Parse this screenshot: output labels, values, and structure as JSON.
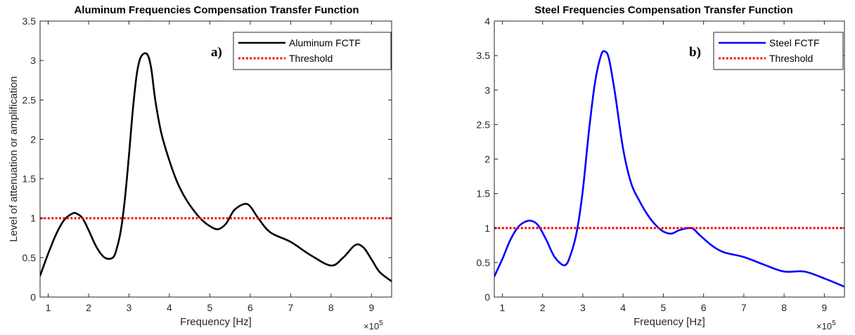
{
  "chart_data": [
    {
      "type": "line",
      "title": "Aluminum Frequencies Compensation Transfer Function",
      "xlabel": "Frequency [Hz]",
      "ylabel": "Level of attenuation or amplification",
      "x_exponent_label": "×10",
      "x_exponent_power": "5",
      "panel_label": "a)",
      "xlim": [
        0.8,
        9.5
      ],
      "ylim": [
        0,
        3.5
      ],
      "xticks": [
        1,
        2,
        3,
        4,
        5,
        6,
        7,
        8,
        9
      ],
      "yticks": [
        0,
        0.5,
        1,
        1.5,
        2,
        2.5,
        3,
        3.5
      ],
      "xtick_labels": [
        "1",
        "2",
        "3",
        "4",
        "5",
        "6",
        "7",
        "8",
        "9"
      ],
      "ytick_labels": [
        "0",
        "0.5",
        "1",
        "1.5",
        "2",
        "2.5",
        "3",
        "3.5"
      ],
      "legend_position": "top-right",
      "grid": false,
      "series": [
        {
          "name": "Aluminum FCTF",
          "color": "#000000",
          "style": "solid",
          "x": [
            0.8,
            1.0,
            1.2,
            1.4,
            1.6,
            1.7,
            1.85,
            2.0,
            2.2,
            2.4,
            2.6,
            2.7,
            2.8,
            2.9,
            3.0,
            3.1,
            3.2,
            3.3,
            3.45,
            3.55,
            3.65,
            3.8,
            4.0,
            4.2,
            4.4,
            4.6,
            4.8,
            5.0,
            5.2,
            5.4,
            5.6,
            5.85,
            6.0,
            6.2,
            6.5,
            7.0,
            7.5,
            8.0,
            8.3,
            8.6,
            8.8,
            9.0,
            9.2,
            9.5
          ],
          "y": [
            0.27,
            0.55,
            0.8,
            0.98,
            1.06,
            1.06,
            1.0,
            0.85,
            0.63,
            0.5,
            0.5,
            0.62,
            0.85,
            1.25,
            1.8,
            2.4,
            2.85,
            3.05,
            3.08,
            2.9,
            2.5,
            2.08,
            1.73,
            1.45,
            1.25,
            1.1,
            0.98,
            0.9,
            0.86,
            0.93,
            1.1,
            1.18,
            1.15,
            1.0,
            0.82,
            0.7,
            0.53,
            0.4,
            0.5,
            0.66,
            0.63,
            0.48,
            0.32,
            0.2
          ]
        },
        {
          "name": "Threshold",
          "color": "#ff0000",
          "style": "dotted",
          "x": [
            0.8,
            9.5
          ],
          "y": [
            1,
            1
          ]
        }
      ]
    },
    {
      "type": "line",
      "title": "Steel Frequencies Compensation Transfer Function",
      "xlabel": "Frequency [Hz]",
      "ylabel": "",
      "x_exponent_label": "×10",
      "x_exponent_power": "5",
      "panel_label": "b)",
      "xlim": [
        0.8,
        9.5
      ],
      "ylim": [
        0,
        4
      ],
      "xticks": [
        1,
        2,
        3,
        4,
        5,
        6,
        7,
        8,
        9
      ],
      "yticks": [
        0,
        0.5,
        1,
        1.5,
        2,
        2.5,
        3,
        3.5,
        4
      ],
      "xtick_labels": [
        "1",
        "2",
        "3",
        "4",
        "5",
        "6",
        "7",
        "8",
        "9"
      ],
      "ytick_labels": [
        "0",
        "0.5",
        "1",
        "1.5",
        "2",
        "2.5",
        "3",
        "3.5",
        "4"
      ],
      "legend_position": "top-right",
      "grid": false,
      "series": [
        {
          "name": "Steel FCTF",
          "color": "#0000ff",
          "style": "solid",
          "x": [
            0.8,
            1.0,
            1.2,
            1.4,
            1.6,
            1.75,
            1.9,
            2.1,
            2.3,
            2.55,
            2.7,
            2.85,
            3.0,
            3.15,
            3.3,
            3.45,
            3.55,
            3.65,
            3.8,
            4.0,
            4.2,
            4.4,
            4.6,
            4.8,
            5.0,
            5.2,
            5.4,
            5.7,
            5.9,
            6.2,
            6.5,
            7.0,
            7.5,
            8.0,
            8.5,
            9.0,
            9.5
          ],
          "y": [
            0.3,
            0.55,
            0.83,
            1.02,
            1.1,
            1.1,
            1.03,
            0.82,
            0.58,
            0.46,
            0.62,
            0.95,
            1.55,
            2.4,
            3.1,
            3.5,
            3.56,
            3.45,
            2.95,
            2.15,
            1.65,
            1.4,
            1.2,
            1.05,
            0.95,
            0.92,
            0.97,
            1.0,
            0.9,
            0.75,
            0.65,
            0.58,
            0.47,
            0.37,
            0.37,
            0.27,
            0.15
          ]
        },
        {
          "name": "Threshold",
          "color": "#ff0000",
          "style": "dotted",
          "x": [
            0.8,
            9.5
          ],
          "y": [
            1,
            1
          ]
        }
      ]
    }
  ]
}
